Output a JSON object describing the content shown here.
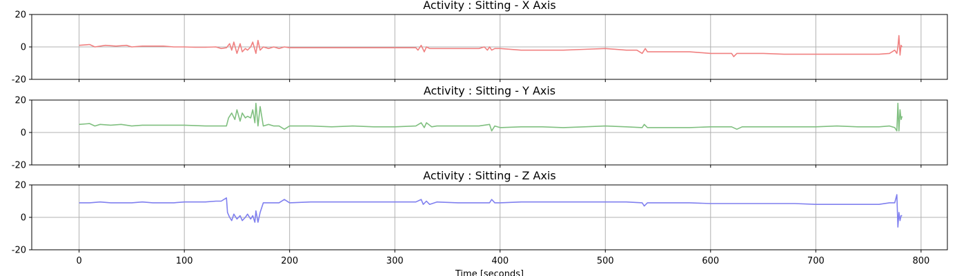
{
  "chart_data": [
    {
      "type": "line",
      "title": "Activity : Sitting - X Axis",
      "color": "#f08080",
      "ylim": [
        -20,
        20
      ],
      "xlim": [
        -45,
        825
      ],
      "yticks": [
        -20,
        0,
        20
      ],
      "xticks": [
        0,
        100,
        200,
        300,
        400,
        500,
        600,
        700,
        800
      ],
      "grid": true,
      "series": [
        {
          "x": [
            0,
            10,
            15,
            25,
            35,
            45,
            50,
            60,
            70,
            80,
            90,
            100,
            110,
            120,
            130,
            135,
            140,
            143,
            145,
            147,
            150,
            153,
            155,
            158,
            160,
            163,
            165,
            168,
            170,
            172,
            175,
            180,
            185,
            190,
            195,
            200,
            220,
            240,
            260,
            280,
            300,
            320,
            322,
            325,
            328,
            330,
            333,
            340,
            360,
            375,
            380,
            385,
            388,
            390,
            392,
            395,
            400,
            420,
            440,
            460,
            480,
            500,
            520,
            530,
            535,
            538,
            540,
            560,
            580,
            600,
            620,
            622,
            625,
            630,
            650,
            670,
            700,
            720,
            740,
            760,
            770,
            775,
            777,
            778,
            779,
            780,
            781,
            782
          ],
          "y": [
            1,
            1.5,
            0,
            1,
            0.5,
            1,
            0,
            0.5,
            0.5,
            0.5,
            0,
            0,
            -0.2,
            -0.2,
            0,
            -1,
            -0.5,
            2,
            -2,
            3,
            -4,
            2,
            -3,
            -1,
            -2,
            0,
            3,
            -4,
            4,
            -2,
            0,
            -1,
            0,
            -1,
            0,
            -0.5,
            -0.5,
            -0.5,
            -0.5,
            -0.5,
            -0.5,
            -0.5,
            -2,
            1,
            -3,
            0,
            -1,
            -1,
            -1,
            -1,
            -1,
            0,
            -2,
            0,
            -2,
            -1,
            -1,
            -2,
            -2,
            -2,
            -1.5,
            -1,
            -2,
            -2,
            -4,
            -1,
            -3,
            -3,
            -3,
            -4,
            -4,
            -6,
            -4,
            -4,
            -4,
            -4.5,
            -4.5,
            -4.5,
            -4.5,
            -4.5,
            -4,
            -2,
            -4,
            0,
            7,
            -5,
            1,
            0
          ]
        }
      ]
    },
    {
      "type": "line",
      "title": "Activity : Sitting - Y Axis",
      "color": "#7fbf7f",
      "ylim": [
        -20,
        20
      ],
      "xlim": [
        -45,
        825
      ],
      "yticks": [
        -20,
        0,
        20
      ],
      "xticks": [
        0,
        100,
        200,
        300,
        400,
        500,
        600,
        700,
        800
      ],
      "grid": true,
      "series": [
        {
          "x": [
            0,
            10,
            15,
            20,
            30,
            40,
            50,
            60,
            70,
            80,
            90,
            100,
            120,
            135,
            140,
            142,
            145,
            148,
            150,
            153,
            155,
            158,
            160,
            163,
            165,
            167,
            168,
            170,
            172,
            175,
            180,
            185,
            190,
            195,
            200,
            220,
            240,
            260,
            280,
            300,
            320,
            325,
            328,
            330,
            335,
            340,
            360,
            380,
            390,
            392,
            395,
            400,
            420,
            440,
            460,
            480,
            500,
            520,
            535,
            537,
            540,
            560,
            580,
            600,
            620,
            625,
            630,
            650,
            670,
            700,
            720,
            740,
            760,
            770,
            775,
            777,
            778,
            779,
            780,
            781,
            782
          ],
          "y": [
            5,
            5.5,
            4,
            5,
            4.5,
            5,
            4,
            4.5,
            4.5,
            4.5,
            4.5,
            4.5,
            4,
            4,
            4,
            9,
            12,
            8,
            14,
            7,
            12,
            9,
            10,
            9,
            14,
            6,
            18,
            4,
            16,
            4,
            5,
            4,
            4,
            2,
            4,
            4,
            3.5,
            4,
            3.5,
            3.5,
            4,
            6,
            3,
            6,
            3.5,
            4,
            4,
            4,
            5,
            1,
            4,
            3,
            3.5,
            3.5,
            3,
            3.5,
            4,
            3.5,
            3,
            5,
            3,
            3,
            3,
            3.5,
            3.5,
            2,
            3.5,
            3.5,
            3.5,
            3.5,
            4,
            3.5,
            3.5,
            4,
            3,
            1,
            18,
            1,
            14,
            8,
            10
          ]
        }
      ]
    },
    {
      "type": "line",
      "title": "Activity : Sitting - Z Axis",
      "color": "#7f7fef",
      "xlabel": "Time [seconds]",
      "ylim": [
        -20,
        20
      ],
      "xlim": [
        -45,
        825
      ],
      "yticks": [
        -20,
        0,
        20
      ],
      "xticks": [
        0,
        100,
        200,
        300,
        400,
        500,
        600,
        700,
        800
      ],
      "grid": true,
      "series": [
        {
          "x": [
            0,
            10,
            20,
            30,
            40,
            50,
            60,
            70,
            80,
            90,
            100,
            110,
            120,
            130,
            135,
            140,
            141,
            143,
            145,
            147,
            150,
            153,
            155,
            158,
            160,
            163,
            165,
            167,
            168,
            170,
            172,
            175,
            180,
            190,
            195,
            200,
            220,
            240,
            260,
            280,
            300,
            320,
            325,
            327,
            330,
            333,
            340,
            360,
            380,
            390,
            392,
            395,
            400,
            420,
            440,
            460,
            480,
            500,
            520,
            535,
            537,
            540,
            560,
            580,
            600,
            620,
            640,
            660,
            680,
            700,
            720,
            740,
            760,
            770,
            775,
            777,
            778,
            779,
            780,
            781,
            782
          ],
          "y": [
            9,
            9,
            9.5,
            9,
            9,
            9,
            9.5,
            9,
            9,
            9,
            9.5,
            9.5,
            9.5,
            10,
            10,
            12,
            3,
            0,
            -2,
            2,
            -1,
            1,
            -2,
            0,
            2,
            -1,
            1,
            -3,
            4,
            -3,
            3,
            9,
            9,
            9,
            11,
            9,
            9.5,
            9.5,
            9.5,
            9.5,
            9.5,
            9.5,
            11,
            8,
            10,
            8,
            9.5,
            9,
            9,
            9,
            11,
            9,
            9,
            9.5,
            9.5,
            9.5,
            9.5,
            9.5,
            9.5,
            9,
            7,
            9,
            9,
            9,
            8.5,
            8.5,
            8.5,
            8.5,
            8.5,
            8,
            8,
            8,
            8,
            9,
            9,
            14,
            -6,
            3,
            -2,
            1,
            1
          ]
        }
      ]
    }
  ]
}
